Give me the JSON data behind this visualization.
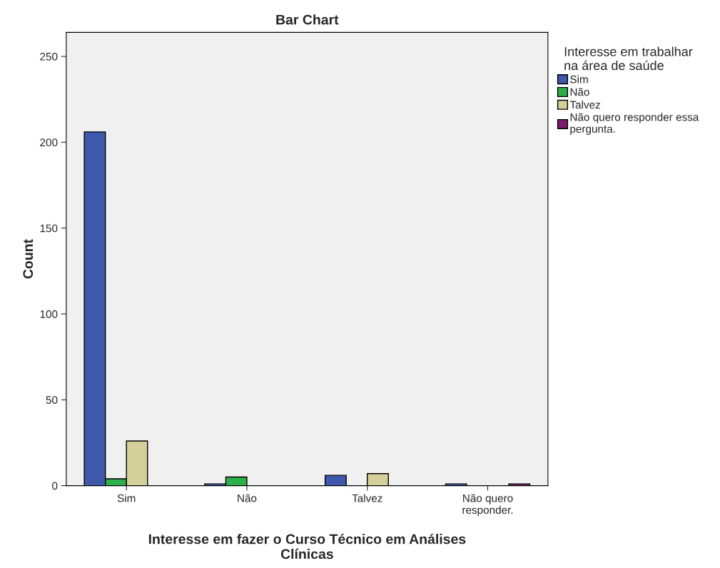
{
  "chart_data": {
    "type": "bar",
    "title": "Bar Chart",
    "xlabel": "Interesse em fazer o Curso Técnico em Análises\nClínicas",
    "ylabel": "Count",
    "legend_title": "Interesse em trabalhar\nna área de saúde",
    "categories": [
      "Sim",
      "Não",
      "Talvez",
      "Não quero\nresponder."
    ],
    "series": [
      {
        "name": "Sim",
        "color": "#3e58ac",
        "values": [
          206,
          1,
          6,
          1
        ]
      },
      {
        "name": "Não",
        "color": "#2db04a",
        "values": [
          4,
          5,
          null,
          null
        ]
      },
      {
        "name": "Talvez",
        "color": "#d5d09a",
        "values": [
          26,
          null,
          7,
          null
        ]
      },
      {
        "name": "Não quero responder essa\npergunta.",
        "color": "#7b1c6f",
        "values": [
          null,
          null,
          null,
          1
        ]
      }
    ],
    "ylim": [
      0,
      264
    ],
    "yticks": [
      0,
      50,
      100,
      150,
      200,
      250
    ],
    "grid": false,
    "legend": "right"
  }
}
